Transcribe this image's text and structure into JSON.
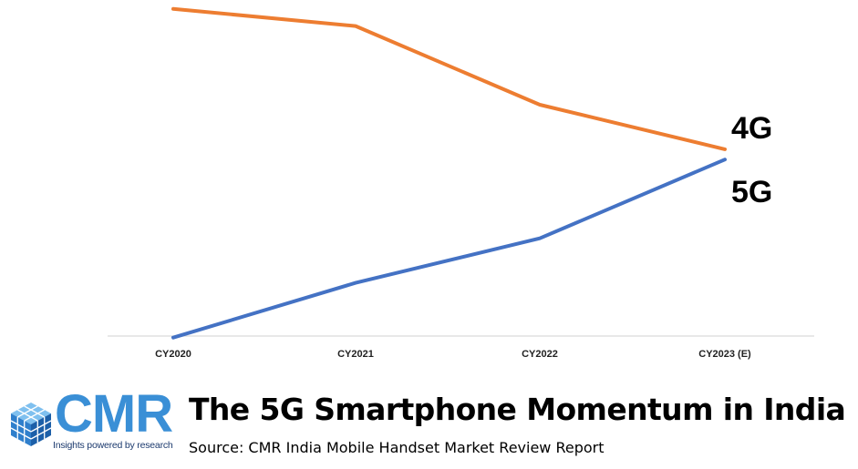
{
  "chart_data": {
    "type": "line",
    "categories": [
      "CY2020",
      "CY2021",
      "CY2022",
      "CY2023 (E)"
    ],
    "ylim": [
      0,
      100
    ],
    "grid": false,
    "series": [
      {
        "name": "4G",
        "color": "#ED7D31",
        "values": [
          99,
          94,
          71,
          58
        ]
      },
      {
        "name": "5G",
        "color": "#4472C4",
        "values": [
          3,
          19,
          32,
          55
        ]
      }
    ]
  },
  "footer": {
    "logo_text": "CMR",
    "logo_tagline": "Insights powered by research",
    "title": "The 5G Smartphone Momentum in India",
    "source": "Source: CMR India Mobile Handset Market Review Report"
  },
  "colors": {
    "logo_blue": "#3a8fd6",
    "axis": "#d9d9d9"
  }
}
